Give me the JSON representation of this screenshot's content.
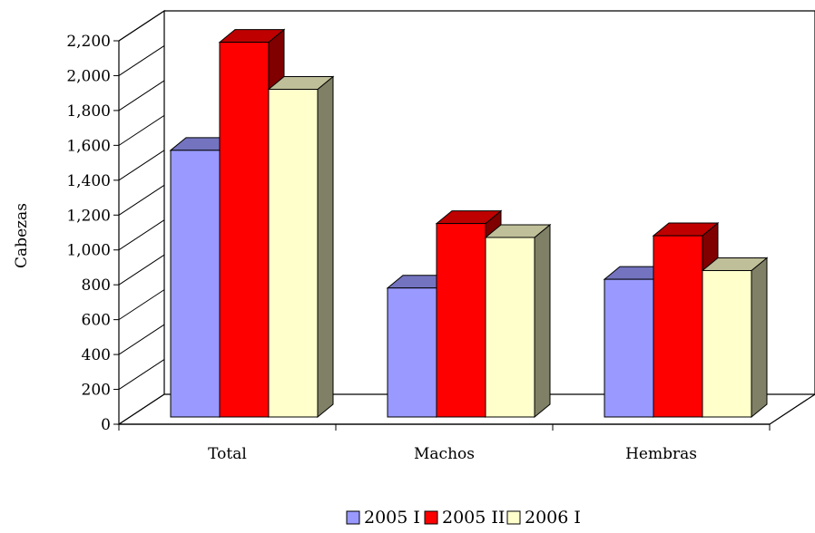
{
  "chart_data": {
    "type": "bar",
    "style": "3d-clustered-column",
    "title": "",
    "xlabel": "",
    "ylabel": "Cabezas",
    "categories": [
      "Total",
      "Machos",
      "Hembras"
    ],
    "ylim": [
      0,
      2200
    ],
    "yticks": [
      0,
      200,
      400,
      600,
      800,
      1000,
      1200,
      1400,
      1600,
      1800,
      2000,
      2200
    ],
    "ytick_labels": [
      "0",
      "200",
      "400",
      "600",
      "800",
      "1,000",
      "1,200",
      "1,400",
      "1,600",
      "1,800",
      "2,000",
      "2,200"
    ],
    "grid": false,
    "legend_position": "bottom",
    "series": [
      {
        "name": "2005 I",
        "values": [
          1530,
          740,
          790
        ],
        "color": "#9999ff"
      },
      {
        "name": "2005 II",
        "values": [
          2150,
          1110,
          1040
        ],
        "color": "#ff0000"
      },
      {
        "name": "2006 I",
        "values": [
          1880,
          1030,
          840
        ],
        "color": "#ffffcc"
      }
    ]
  }
}
